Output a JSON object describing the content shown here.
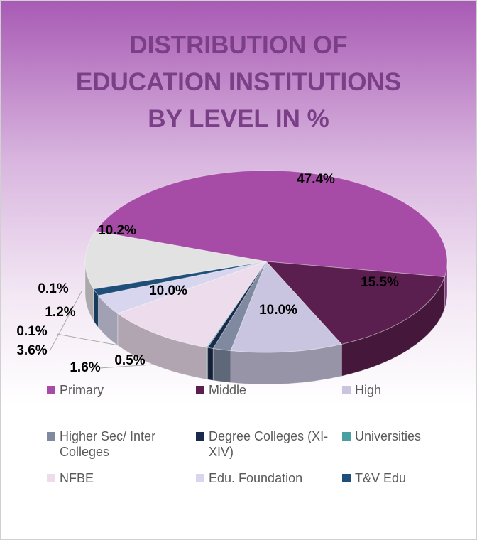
{
  "chart_data": {
    "type": "pie3d",
    "title": "DISTRIBUTION OF EDUCATION INSTITUTIONS BY LEVEL IN %",
    "categories": [
      "Primary",
      "Middle",
      "High",
      "Higher Sec/ Inter Colleges",
      "Degree Colleges (XI-XIV)",
      "Universities",
      "NFBE",
      "Edu. Foundation",
      "T&V Edu",
      null,
      null
    ],
    "values": [
      47.4,
      15.5,
      10.0,
      1.6,
      0.5,
      0.1,
      10.0,
      3.6,
      1.2,
      0.1,
      10.2
    ],
    "value_labels": [
      "47.4%",
      "15.5%",
      "10.0%",
      "1.6%",
      "0.5%",
      "0.1%",
      "10.0%",
      "3.6%",
      "1.2%",
      "0.1%",
      "10.2%"
    ],
    "colors": [
      "#a64ca6",
      "#5a1f4f",
      "#c9c5e0",
      "#7f8aa0",
      "#1a2a4a",
      "#4aa0a0",
      "#ecdcec",
      "#d8d6ee",
      "#1f4e79",
      "#c9a5c9",
      "#e2e2e2"
    ],
    "legend": "bottom"
  }
}
